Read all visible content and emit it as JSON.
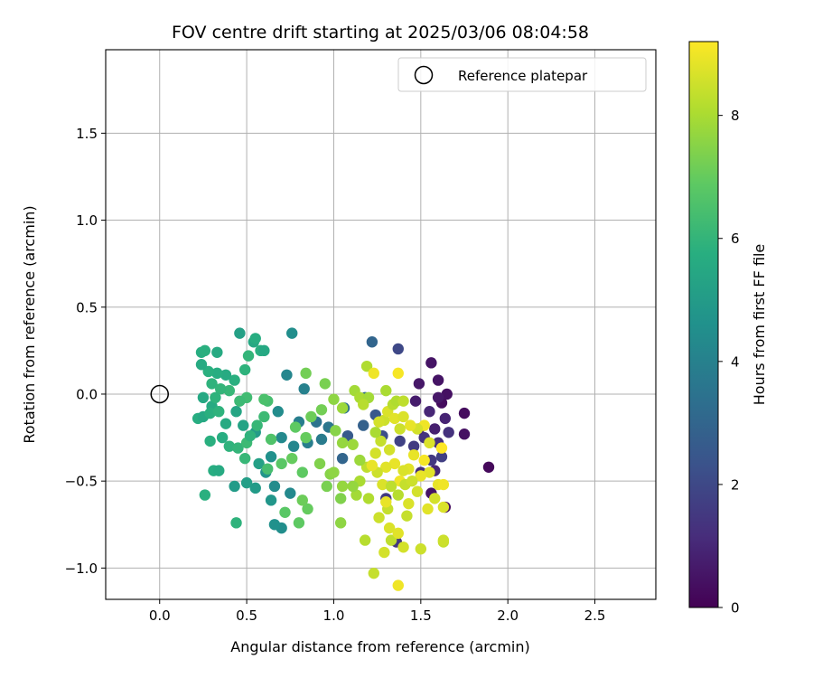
{
  "chart_data": {
    "type": "scatter",
    "title": "FOV centre drift starting at 2025/03/06 08:04:58",
    "xlabel": "Angular distance from reference (arcmin)",
    "ylabel": "Rotation from reference (arcmin)",
    "xlim": [
      -0.31,
      2.85
    ],
    "ylim": [
      -1.18,
      1.98
    ],
    "xticks": [
      0.0,
      0.5,
      1.0,
      1.5,
      2.0,
      2.5
    ],
    "xtick_labels": [
      "0.0",
      "0.5",
      "1.0",
      "1.5",
      "2.0",
      "2.5"
    ],
    "yticks": [
      -1.0,
      -0.5,
      0.0,
      0.5,
      1.0,
      1.5
    ],
    "ytick_labels": [
      "−1.0",
      "−0.5",
      "0.0",
      "0.5",
      "1.0",
      "1.5"
    ],
    "grid": true,
    "legend": {
      "placement": "top-right",
      "entries": [
        {
          "label": "Reference platepar",
          "marker": "open-circle"
        }
      ]
    },
    "reference_point": {
      "x": 0.0,
      "y": 0.0
    },
    "colormap": "viridis",
    "colorbar": {
      "label": "Hours from first FF file",
      "min": 0,
      "max": 9.2,
      "ticks": [
        0,
        2,
        4,
        6,
        8
      ],
      "tick_labels": [
        "0",
        "2",
        "4",
        "6",
        "8"
      ]
    },
    "series": [
      {
        "points": [
          {
            "x": 1.62,
            "y": -0.05,
            "h": 0.3
          },
          {
            "x": 1.65,
            "y": 0.0,
            "h": 0.4
          },
          {
            "x": 1.56,
            "y": 0.18,
            "h": 0.5
          },
          {
            "x": 1.49,
            "y": 0.06,
            "h": 0.6
          },
          {
            "x": 1.6,
            "y": 0.08,
            "h": 0.5
          },
          {
            "x": 1.75,
            "y": -0.11,
            "h": 0.3
          },
          {
            "x": 1.75,
            "y": -0.23,
            "h": 0.4
          },
          {
            "x": 1.89,
            "y": -0.42,
            "h": 0.2
          },
          {
            "x": 1.64,
            "y": -0.65,
            "h": 0.3
          },
          {
            "x": 1.56,
            "y": -0.57,
            "h": 0.5
          },
          {
            "x": 1.47,
            "y": -0.04,
            "h": 0.7
          },
          {
            "x": 1.55,
            "y": -0.1,
            "h": 1.0
          },
          {
            "x": 1.58,
            "y": -0.2,
            "h": 0.8
          },
          {
            "x": 1.6,
            "y": -0.28,
            "h": 1.2
          },
          {
            "x": 1.52,
            "y": -0.25,
            "h": 1.4
          },
          {
            "x": 1.56,
            "y": -0.38,
            "h": 1.5
          },
          {
            "x": 1.62,
            "y": -0.36,
            "h": 1.7
          },
          {
            "x": 1.66,
            "y": -0.22,
            "h": 1.3
          },
          {
            "x": 1.64,
            "y": -0.14,
            "h": 0.9
          },
          {
            "x": 1.6,
            "y": -0.02,
            "h": 0.6
          },
          {
            "x": 1.49,
            "y": -0.2,
            "h": 1.1
          },
          {
            "x": 1.46,
            "y": -0.3,
            "h": 1.6
          },
          {
            "x": 1.5,
            "y": -0.45,
            "h": 1.2
          },
          {
            "x": 1.58,
            "y": -0.44,
            "h": 1.0
          },
          {
            "x": 1.37,
            "y": 0.26,
            "h": 2.0
          },
          {
            "x": 1.36,
            "y": -0.85,
            "h": 1.5
          },
          {
            "x": 1.38,
            "y": -0.27,
            "h": 1.8
          },
          {
            "x": 1.3,
            "y": -0.6,
            "h": 1.6
          },
          {
            "x": 1.22,
            "y": 0.3,
            "h": 3.0
          },
          {
            "x": 1.18,
            "y": -0.02,
            "h": 3.2
          },
          {
            "x": 1.17,
            "y": -0.18,
            "h": 2.8
          },
          {
            "x": 1.24,
            "y": -0.12,
            "h": 2.5
          },
          {
            "x": 1.28,
            "y": -0.24,
            "h": 2.2
          },
          {
            "x": 1.08,
            "y": -0.24,
            "h": 2.6
          },
          {
            "x": 1.05,
            "y": -0.37,
            "h": 3.0
          },
          {
            "x": 1.06,
            "y": -0.08,
            "h": 3.4
          },
          {
            "x": 0.97,
            "y": -0.19,
            "h": 3.6
          },
          {
            "x": 0.93,
            "y": -0.26,
            "h": 3.8
          },
          {
            "x": 0.9,
            "y": -0.16,
            "h": 3.5
          },
          {
            "x": 0.85,
            "y": -0.28,
            "h": 3.9
          },
          {
            "x": 0.8,
            "y": -0.16,
            "h": 3.9
          },
          {
            "x": 0.76,
            "y": 0.35,
            "h": 4.5
          },
          {
            "x": 0.73,
            "y": 0.11,
            "h": 4.2
          },
          {
            "x": 0.83,
            "y": 0.03,
            "h": 4.0
          },
          {
            "x": 0.77,
            "y": -0.3,
            "h": 4.2
          },
          {
            "x": 0.7,
            "y": -0.25,
            "h": 4.3
          },
          {
            "x": 0.68,
            "y": -0.1,
            "h": 4.4
          },
          {
            "x": 0.64,
            "y": -0.36,
            "h": 4.6
          },
          {
            "x": 0.61,
            "y": -0.45,
            "h": 4.7
          },
          {
            "x": 0.66,
            "y": -0.53,
            "h": 4.4
          },
          {
            "x": 0.75,
            "y": -0.57,
            "h": 4.3
          },
          {
            "x": 0.7,
            "y": -0.77,
            "h": 4.5
          },
          {
            "x": 0.66,
            "y": -0.75,
            "h": 4.6
          },
          {
            "x": 0.64,
            "y": -0.61,
            "h": 4.8
          },
          {
            "x": 0.55,
            "y": -0.54,
            "h": 5.0
          },
          {
            "x": 0.5,
            "y": -0.51,
            "h": 5.1
          },
          {
            "x": 0.43,
            "y": -0.53,
            "h": 5.0
          },
          {
            "x": 0.57,
            "y": -0.4,
            "h": 5.2
          },
          {
            "x": 0.55,
            "y": -0.22,
            "h": 5.0
          },
          {
            "x": 0.48,
            "y": -0.18,
            "h": 5.3
          },
          {
            "x": 0.44,
            "y": -0.1,
            "h": 5.4
          },
          {
            "x": 0.46,
            "y": 0.35,
            "h": 5.2
          },
          {
            "x": 0.54,
            "y": 0.3,
            "h": 5.5
          },
          {
            "x": 0.55,
            "y": 0.32,
            "h": 5.7
          },
          {
            "x": 0.58,
            "y": 0.25,
            "h": 5.8
          },
          {
            "x": 0.6,
            "y": 0.25,
            "h": 5.5
          },
          {
            "x": 0.51,
            "y": 0.22,
            "h": 6.0
          },
          {
            "x": 0.49,
            "y": 0.14,
            "h": 5.9
          },
          {
            "x": 0.43,
            "y": 0.08,
            "h": 5.8
          },
          {
            "x": 0.38,
            "y": 0.11,
            "h": 5.6
          },
          {
            "x": 0.33,
            "y": 0.12,
            "h": 5.7
          },
          {
            "x": 0.3,
            "y": 0.06,
            "h": 5.9
          },
          {
            "x": 0.28,
            "y": 0.13,
            "h": 5.8
          },
          {
            "x": 0.24,
            "y": 0.17,
            "h": 5.6
          },
          {
            "x": 0.24,
            "y": 0.24,
            "h": 5.7
          },
          {
            "x": 0.26,
            "y": 0.25,
            "h": 5.8
          },
          {
            "x": 0.33,
            "y": 0.24,
            "h": 5.6
          },
          {
            "x": 0.25,
            "y": -0.02,
            "h": 5.5
          },
          {
            "x": 0.3,
            "y": -0.07,
            "h": 5.6
          },
          {
            "x": 0.22,
            "y": -0.14,
            "h": 5.7
          },
          {
            "x": 0.25,
            "y": -0.13,
            "h": 5.5
          },
          {
            "x": 0.29,
            "y": -0.11,
            "h": 5.8
          },
          {
            "x": 0.34,
            "y": -0.1,
            "h": 5.9
          },
          {
            "x": 0.38,
            "y": -0.17,
            "h": 5.6
          },
          {
            "x": 0.36,
            "y": -0.25,
            "h": 5.7
          },
          {
            "x": 0.4,
            "y": -0.3,
            "h": 5.9
          },
          {
            "x": 0.45,
            "y": -0.31,
            "h": 6.0
          },
          {
            "x": 0.49,
            "y": -0.37,
            "h": 6.1
          },
          {
            "x": 0.5,
            "y": -0.28,
            "h": 6.2
          },
          {
            "x": 0.52,
            "y": -0.24,
            "h": 5.9
          },
          {
            "x": 0.56,
            "y": -0.18,
            "h": 6.1
          },
          {
            "x": 0.6,
            "y": -0.13,
            "h": 6.2
          },
          {
            "x": 0.62,
            "y": -0.04,
            "h": 6.4
          },
          {
            "x": 0.6,
            "y": -0.03,
            "h": 6.5
          },
          {
            "x": 0.5,
            "y": -0.02,
            "h": 6.3
          },
          {
            "x": 0.46,
            "y": -0.04,
            "h": 6.2
          },
          {
            "x": 0.4,
            "y": 0.02,
            "h": 6.1
          },
          {
            "x": 0.35,
            "y": 0.03,
            "h": 6.0
          },
          {
            "x": 0.32,
            "y": -0.02,
            "h": 5.9
          },
          {
            "x": 0.29,
            "y": -0.27,
            "h": 5.8
          },
          {
            "x": 0.31,
            "y": -0.44,
            "h": 5.7
          },
          {
            "x": 0.34,
            "y": -0.44,
            "h": 5.6
          },
          {
            "x": 0.26,
            "y": -0.58,
            "h": 5.8
          },
          {
            "x": 0.44,
            "y": -0.74,
            "h": 5.9
          },
          {
            "x": 0.62,
            "y": -0.43,
            "h": 6.4
          },
          {
            "x": 0.72,
            "y": -0.68,
            "h": 6.8
          },
          {
            "x": 0.8,
            "y": -0.74,
            "h": 6.9
          },
          {
            "x": 0.85,
            "y": -0.66,
            "h": 7.0
          },
          {
            "x": 0.82,
            "y": -0.61,
            "h": 7.1
          },
          {
            "x": 0.82,
            "y": -0.45,
            "h": 6.9
          },
          {
            "x": 0.76,
            "y": -0.37,
            "h": 7.0
          },
          {
            "x": 0.7,
            "y": -0.4,
            "h": 6.8
          },
          {
            "x": 0.64,
            "y": -0.26,
            "h": 6.6
          },
          {
            "x": 0.78,
            "y": -0.19,
            "h": 6.9
          },
          {
            "x": 0.84,
            "y": -0.25,
            "h": 7.0
          },
          {
            "x": 0.87,
            "y": -0.13,
            "h": 7.1
          },
          {
            "x": 0.93,
            "y": -0.09,
            "h": 7.2
          },
          {
            "x": 0.95,
            "y": 0.06,
            "h": 7.3
          },
          {
            "x": 0.84,
            "y": 0.12,
            "h": 7.2
          },
          {
            "x": 0.92,
            "y": -0.4,
            "h": 7.4
          },
          {
            "x": 0.98,
            "y": -0.46,
            "h": 7.5
          },
          {
            "x": 1.0,
            "y": -0.45,
            "h": 7.6
          },
          {
            "x": 0.96,
            "y": -0.53,
            "h": 7.3
          },
          {
            "x": 1.04,
            "y": -0.6,
            "h": 7.4
          },
          {
            "x": 1.04,
            "y": -0.74,
            "h": 7.6
          },
          {
            "x": 1.05,
            "y": -0.53,
            "h": 7.7
          },
          {
            "x": 1.13,
            "y": -0.58,
            "h": 7.9
          },
          {
            "x": 1.15,
            "y": -0.5,
            "h": 8.0
          },
          {
            "x": 1.11,
            "y": -0.29,
            "h": 7.8
          },
          {
            "x": 1.05,
            "y": -0.28,
            "h": 7.7
          },
          {
            "x": 1.01,
            "y": -0.21,
            "h": 7.5
          },
          {
            "x": 1.0,
            "y": -0.03,
            "h": 7.6
          },
          {
            "x": 1.05,
            "y": -0.08,
            "h": 7.8
          },
          {
            "x": 1.12,
            "y": 0.02,
            "h": 7.9
          },
          {
            "x": 1.15,
            "y": -0.02,
            "h": 8.0
          },
          {
            "x": 1.2,
            "y": -0.02,
            "h": 7.9
          },
          {
            "x": 1.19,
            "y": 0.16,
            "h": 8.1
          },
          {
            "x": 1.17,
            "y": -0.06,
            "h": 8.2
          },
          {
            "x": 1.19,
            "y": -0.42,
            "h": 8.3
          },
          {
            "x": 1.18,
            "y": -0.84,
            "h": 8.2
          },
          {
            "x": 1.23,
            "y": -1.03,
            "h": 8.4
          },
          {
            "x": 1.26,
            "y": -0.71,
            "h": 8.5
          },
          {
            "x": 1.31,
            "y": -0.66,
            "h": 8.4
          },
          {
            "x": 1.33,
            "y": -0.84,
            "h": 8.3
          },
          {
            "x": 1.29,
            "y": -0.91,
            "h": 8.6
          },
          {
            "x": 1.32,
            "y": -0.77,
            "h": 8.7
          },
          {
            "x": 1.37,
            "y": -0.8,
            "h": 8.8
          },
          {
            "x": 1.37,
            "y": -1.1,
            "h": 9.0
          },
          {
            "x": 1.4,
            "y": -0.88,
            "h": 8.6
          },
          {
            "x": 1.42,
            "y": -0.7,
            "h": 8.4
          },
          {
            "x": 1.43,
            "y": -0.63,
            "h": 8.7
          },
          {
            "x": 1.5,
            "y": -0.89,
            "h": 8.5
          },
          {
            "x": 1.54,
            "y": -0.66,
            "h": 8.8
          },
          {
            "x": 1.58,
            "y": -0.6,
            "h": 8.6
          },
          {
            "x": 1.63,
            "y": -0.65,
            "h": 8.7
          },
          {
            "x": 1.63,
            "y": -0.85,
            "h": 8.4
          },
          {
            "x": 1.63,
            "y": -0.84,
            "h": 8.5
          },
          {
            "x": 1.6,
            "y": -0.52,
            "h": 8.9
          },
          {
            "x": 1.63,
            "y": -0.52,
            "h": 9.0
          },
          {
            "x": 1.55,
            "y": -0.45,
            "h": 8.8
          },
          {
            "x": 1.5,
            "y": -0.47,
            "h": 8.9
          },
          {
            "x": 1.52,
            "y": -0.38,
            "h": 9.1
          },
          {
            "x": 1.52,
            "y": -0.18,
            "h": 9.0
          },
          {
            "x": 1.62,
            "y": -0.31,
            "h": 9.2
          },
          {
            "x": 1.55,
            "y": -0.28,
            "h": 8.7
          },
          {
            "x": 1.48,
            "y": -0.2,
            "h": 8.6
          },
          {
            "x": 1.46,
            "y": -0.35,
            "h": 8.9
          },
          {
            "x": 1.43,
            "y": -0.43,
            "h": 8.8
          },
          {
            "x": 1.4,
            "y": -0.44,
            "h": 8.7
          },
          {
            "x": 1.38,
            "y": -0.5,
            "h": 9.0
          },
          {
            "x": 1.35,
            "y": -0.4,
            "h": 8.9
          },
          {
            "x": 1.32,
            "y": -0.32,
            "h": 8.6
          },
          {
            "x": 1.3,
            "y": -0.42,
            "h": 8.8
          },
          {
            "x": 1.28,
            "y": -0.52,
            "h": 8.7
          },
          {
            "x": 1.25,
            "y": -0.45,
            "h": 8.5
          },
          {
            "x": 1.22,
            "y": -0.41,
            "h": 8.9
          },
          {
            "x": 1.24,
            "y": -0.34,
            "h": 8.6
          },
          {
            "x": 1.27,
            "y": -0.27,
            "h": 8.4
          },
          {
            "x": 1.29,
            "y": -0.15,
            "h": 8.5
          },
          {
            "x": 1.26,
            "y": -0.16,
            "h": 8.6
          },
          {
            "x": 1.31,
            "y": -0.1,
            "h": 8.7
          },
          {
            "x": 1.35,
            "y": -0.14,
            "h": 8.8
          },
          {
            "x": 1.4,
            "y": -0.13,
            "h": 8.7
          },
          {
            "x": 1.44,
            "y": -0.18,
            "h": 8.9
          },
          {
            "x": 1.38,
            "y": -0.2,
            "h": 8.5
          },
          {
            "x": 1.34,
            "y": -0.06,
            "h": 8.2
          },
          {
            "x": 1.36,
            "y": -0.04,
            "h": 8.1
          },
          {
            "x": 1.4,
            "y": -0.04,
            "h": 8.3
          },
          {
            "x": 1.3,
            "y": 0.02,
            "h": 8.0
          },
          {
            "x": 1.23,
            "y": 0.12,
            "h": 9.0
          },
          {
            "x": 1.37,
            "y": 0.12,
            "h": 9.1
          },
          {
            "x": 1.24,
            "y": -0.22,
            "h": 8.0
          },
          {
            "x": 1.15,
            "y": -0.38,
            "h": 7.8
          },
          {
            "x": 1.11,
            "y": -0.53,
            "h": 7.7
          },
          {
            "x": 1.2,
            "y": -0.6,
            "h": 8.1
          },
          {
            "x": 1.3,
            "y": -0.62,
            "h": 8.9
          },
          {
            "x": 1.33,
            "y": -0.53,
            "h": 8.3
          },
          {
            "x": 1.37,
            "y": -0.58,
            "h": 8.2
          },
          {
            "x": 1.41,
            "y": -0.52,
            "h": 8.4
          },
          {
            "x": 1.45,
            "y": -0.5,
            "h": 8.5
          },
          {
            "x": 1.48,
            "y": -0.56,
            "h": 8.6
          }
        ]
      }
    ]
  }
}
